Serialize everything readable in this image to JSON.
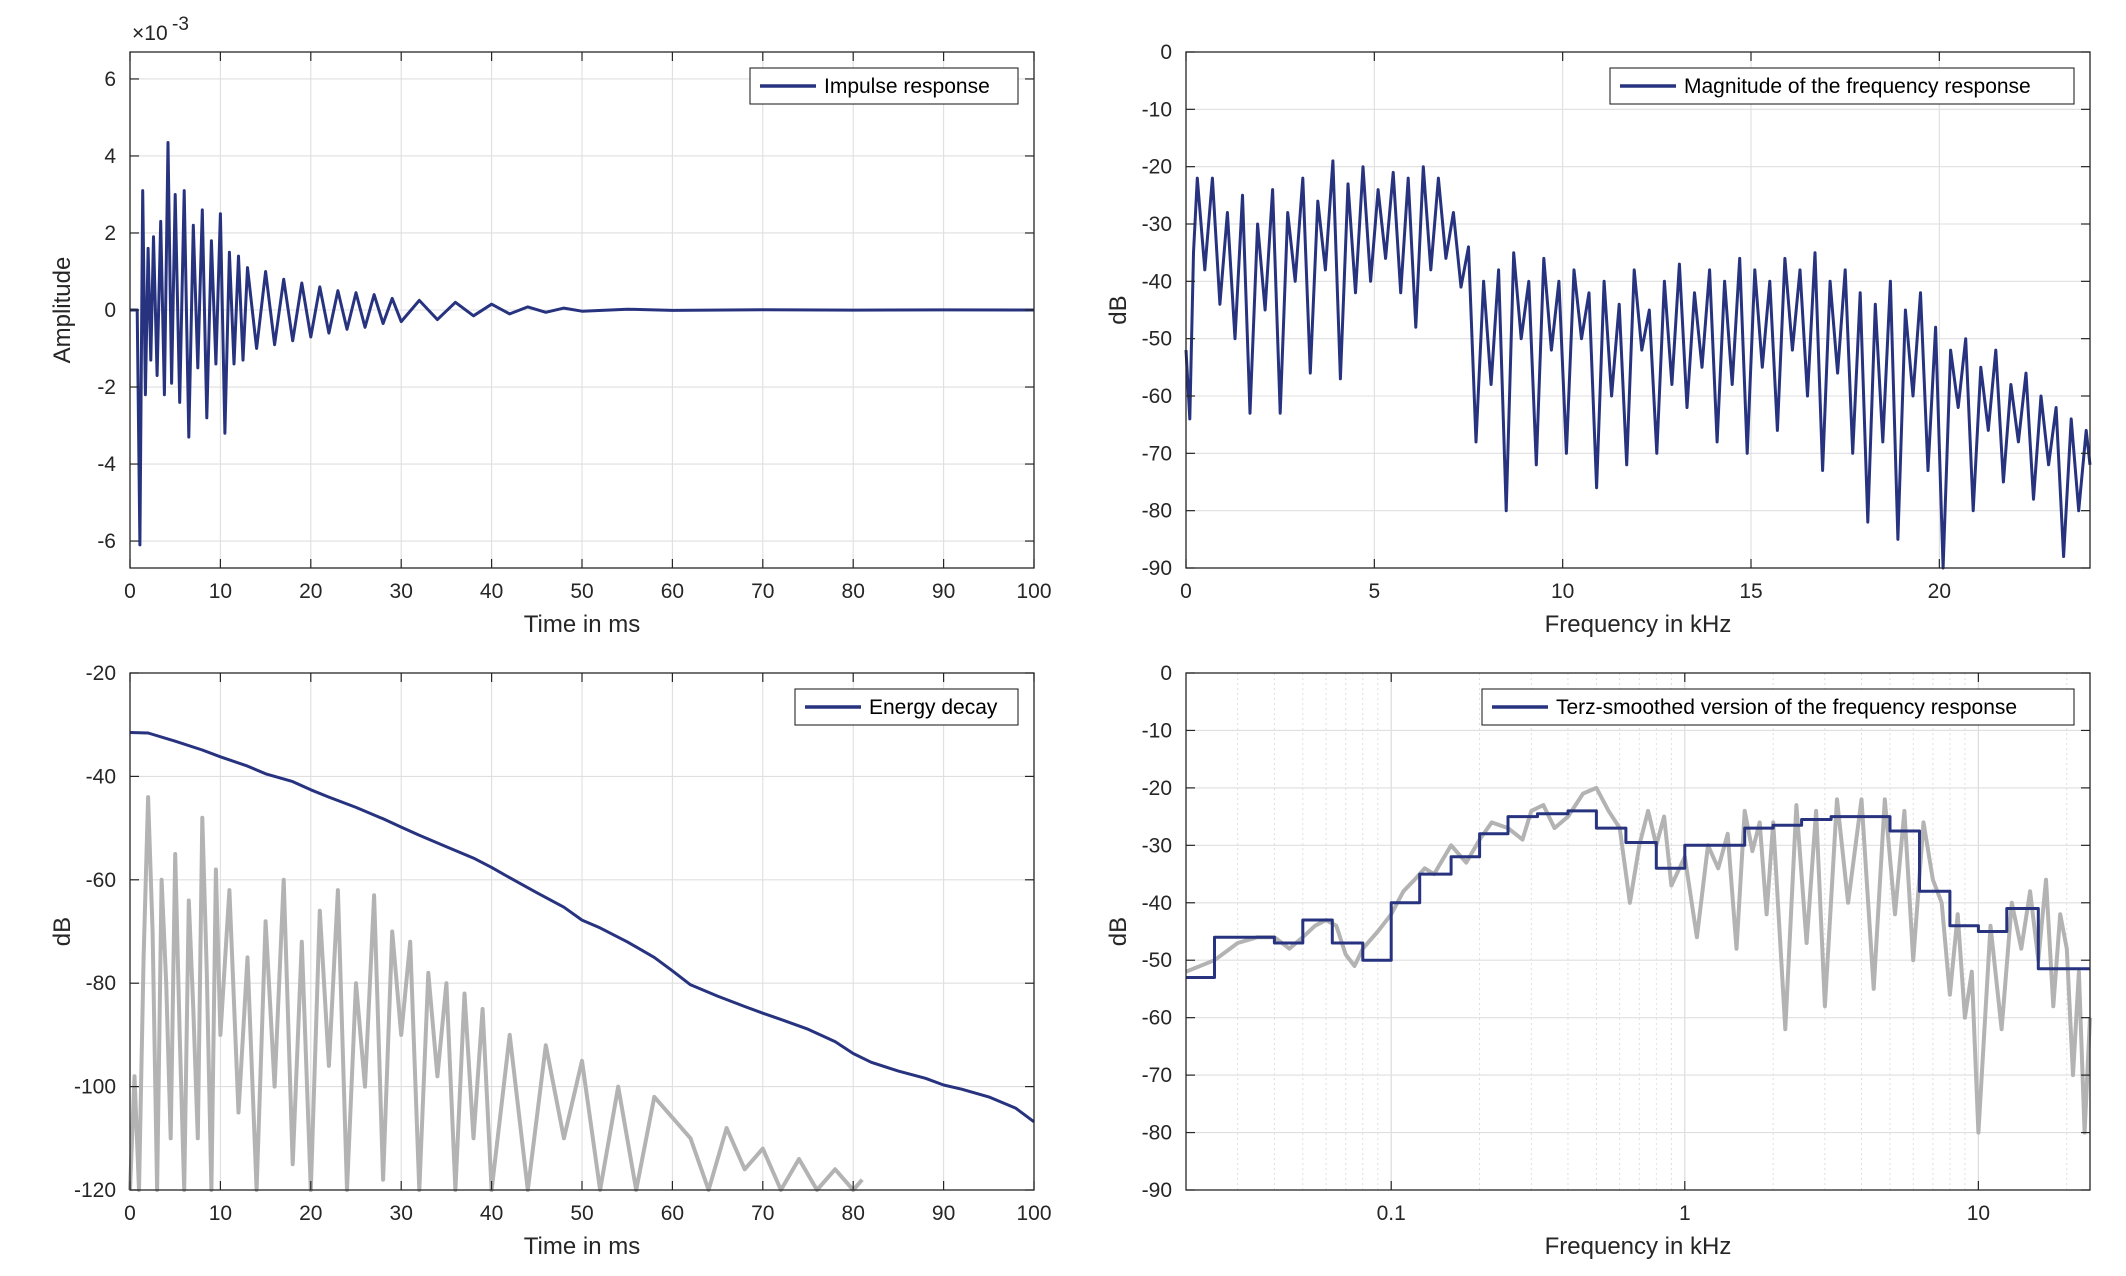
{
  "chart_data": [
    {
      "type": "line",
      "panel": "top-left",
      "xlabel": "Time in ms",
      "ylabel": "Amplitude",
      "xlim": [
        0,
        100
      ],
      "ylim": [
        -6.7,
        6.7
      ],
      "y_scale_note": "×10",
      "y_exponent": "-3",
      "xticks": [
        0,
        10,
        20,
        30,
        40,
        50,
        60,
        70,
        80,
        90,
        100
      ],
      "yticks": [
        -6,
        -4,
        -2,
        0,
        2,
        4,
        6
      ],
      "grid": true,
      "legend_position": "top-right",
      "series": [
        {
          "name": "Impulse response",
          "color": "#27337f",
          "x": [
            0,
            0.8,
            1.1,
            1.4,
            1.7,
            2.0,
            2.3,
            2.6,
            3.0,
            3.4,
            3.8,
            4.2,
            4.6,
            5.0,
            5.5,
            6.0,
            6.5,
            7.0,
            7.5,
            8.0,
            8.5,
            9.0,
            9.5,
            10.0,
            10.5,
            11.0,
            11.5,
            12.0,
            12.5,
            13,
            14,
            15,
            16,
            17,
            18,
            19,
            20,
            21,
            22,
            23,
            24,
            25,
            26,
            27,
            28,
            29,
            30,
            32,
            34,
            36,
            38,
            40,
            42,
            44,
            46,
            48,
            50,
            55,
            60,
            70,
            80,
            90,
            100
          ],
          "y": [
            0,
            0,
            -6.1,
            3.1,
            -2.2,
            1.6,
            -1.3,
            1.9,
            -1.7,
            2.3,
            -2.2,
            4.35,
            -1.9,
            3.0,
            -2.4,
            3.1,
            -3.3,
            2.2,
            -1.5,
            2.6,
            -2.8,
            1.8,
            -1.4,
            2.5,
            -3.2,
            1.5,
            -1.4,
            1.4,
            -1.3,
            1.1,
            -1.0,
            1.0,
            -0.9,
            0.8,
            -0.8,
            0.7,
            -0.7,
            0.6,
            -0.6,
            0.5,
            -0.5,
            0.45,
            -0.45,
            0.4,
            -0.35,
            0.3,
            -0.3,
            0.25,
            -0.25,
            0.2,
            -0.15,
            0.15,
            -0.1,
            0.08,
            -0.06,
            0.05,
            -0.03,
            0.02,
            -0.01,
            0.005,
            -0.003,
            0.002,
            0
          ]
        }
      ]
    },
    {
      "type": "line",
      "panel": "top-right",
      "xlabel": "Frequency in kHz",
      "ylabel": "dB",
      "xlim": [
        0,
        24
      ],
      "ylim": [
        -90,
        0
      ],
      "xticks": [
        0,
        5,
        10,
        15,
        20
      ],
      "yticks": [
        0,
        -10,
        -20,
        -30,
        -40,
        -50,
        -60,
        -70,
        -80,
        -90
      ],
      "grid": true,
      "legend_position": "top-right",
      "series": [
        {
          "name": "Magnitude of the frequency response",
          "color": "#27337f",
          "x": [
            0,
            0.1,
            0.2,
            0.3,
            0.5,
            0.7,
            0.9,
            1.1,
            1.3,
            1.5,
            1.7,
            1.9,
            2.1,
            2.3,
            2.5,
            2.7,
            2.9,
            3.1,
            3.3,
            3.5,
            3.7,
            3.9,
            4.1,
            4.3,
            4.5,
            4.7,
            4.9,
            5.1,
            5.3,
            5.5,
            5.7,
            5.9,
            6.1,
            6.3,
            6.5,
            6.7,
            6.9,
            7.1,
            7.3,
            7.5,
            7.7,
            7.9,
            8.1,
            8.3,
            8.5,
            8.7,
            8.9,
            9.1,
            9.3,
            9.5,
            9.7,
            9.9,
            10.1,
            10.3,
            10.5,
            10.7,
            10.9,
            11.1,
            11.3,
            11.5,
            11.7,
            11.9,
            12.1,
            12.3,
            12.5,
            12.7,
            12.9,
            13.1,
            13.3,
            13.5,
            13.7,
            13.9,
            14.1,
            14.3,
            14.5,
            14.7,
            14.9,
            15.1,
            15.3,
            15.5,
            15.7,
            15.9,
            16.1,
            16.3,
            16.5,
            16.7,
            16.9,
            17.1,
            17.3,
            17.5,
            17.7,
            17.9,
            18.1,
            18.3,
            18.5,
            18.7,
            18.9,
            19.1,
            19.3,
            19.5,
            19.7,
            19.9,
            20.1,
            20.3,
            20.5,
            20.7,
            20.9,
            21.1,
            21.3,
            21.5,
            21.7,
            21.9,
            22.1,
            22.3,
            22.5,
            22.7,
            22.9,
            23.1,
            23.3,
            23.5,
            23.7,
            23.9,
            24
          ],
          "y": [
            -52,
            -64,
            -35,
            -22,
            -38,
            -22,
            -44,
            -28,
            -50,
            -25,
            -63,
            -30,
            -45,
            -24,
            -63,
            -28,
            -40,
            -22,
            -56,
            -26,
            -38,
            -19,
            -57,
            -23,
            -42,
            -20,
            -40,
            -24,
            -36,
            -21,
            -42,
            -22,
            -48,
            -20,
            -38,
            -22,
            -36,
            -28,
            -41,
            -34,
            -68,
            -40,
            -58,
            -38,
            -80,
            -35,
            -50,
            -40,
            -72,
            -36,
            -52,
            -40,
            -70,
            -38,
            -50,
            -42,
            -76,
            -40,
            -60,
            -44,
            -72,
            -38,
            -52,
            -45,
            -70,
            -40,
            -58,
            -37,
            -62,
            -42,
            -55,
            -38,
            -68,
            -40,
            -58,
            -36,
            -70,
            -38,
            -55,
            -40,
            -66,
            -36,
            -52,
            -38,
            -60,
            -35,
            -73,
            -40,
            -56,
            -38,
            -70,
            -42,
            -82,
            -44,
            -68,
            -40,
            -85,
            -45,
            -60,
            -42,
            -73,
            -48,
            -90,
            -52,
            -62,
            -50,
            -80,
            -55,
            -66,
            -52,
            -75,
            -58,
            -68,
            -56,
            -78,
            -60,
            -72,
            -62,
            -88,
            -64,
            -80,
            -66,
            -72
          ]
        }
      ]
    },
    {
      "type": "line",
      "panel": "bottom-left",
      "xlabel": "Time in ms",
      "ylabel": "dB",
      "xlim": [
        0,
        100
      ],
      "ylim": [
        -120,
        -20
      ],
      "xticks": [
        0,
        10,
        20,
        30,
        40,
        50,
        60,
        70,
        80,
        90,
        100
      ],
      "yticks": [
        -20,
        -40,
        -60,
        -80,
        -100,
        -120
      ],
      "grid": true,
      "legend_position": "top-right",
      "series": [
        {
          "name": "Energy decay",
          "color": "#27337f",
          "x": [
            0,
            2,
            5,
            8,
            10,
            13,
            15,
            18,
            20,
            22,
            25,
            28,
            30,
            32,
            35,
            38,
            40,
            42,
            45,
            48,
            50,
            52,
            55,
            58,
            60,
            62,
            65,
            68,
            70,
            72,
            75,
            78,
            80,
            82,
            85,
            88,
            90,
            92,
            95,
            98,
            100
          ],
          "y": [
            -31.5,
            -31.6,
            -33.2,
            -34.9,
            -36.2,
            -38.0,
            -39.5,
            -41.0,
            -42.6,
            -44.0,
            -46.0,
            -48.2,
            -49.8,
            -51.4,
            -53.6,
            -55.8,
            -57.6,
            -59.6,
            -62.5,
            -65.3,
            -67.8,
            -69.3,
            -72.0,
            -75.0,
            -77.6,
            -80.3,
            -82.5,
            -84.5,
            -85.8,
            -87.0,
            -88.9,
            -91.3,
            -93.6,
            -95.3,
            -97.0,
            -98.4,
            -99.7,
            -100.5,
            -102.0,
            -104.2,
            -106.8
          ]
        },
        {
          "name": "",
          "color": "#b3b3b3",
          "x": [
            0,
            0.5,
            1,
            1.5,
            2,
            2.5,
            3,
            3.5,
            4,
            4.5,
            5,
            5.5,
            6,
            6.5,
            7,
            7.5,
            8,
            8.5,
            9,
            9.5,
            10,
            11,
            12,
            13,
            14,
            15,
            16,
            17,
            18,
            19,
            20,
            21,
            22,
            23,
            24,
            25,
            26,
            27,
            28,
            29,
            30,
            31,
            32,
            33,
            34,
            35,
            36,
            37,
            38,
            39,
            40,
            42,
            44,
            46,
            48,
            50,
            52,
            54,
            56,
            58,
            60,
            62,
            64,
            66,
            68,
            70,
            72,
            74,
            76,
            78,
            80,
            81
          ],
          "y": [
            -120,
            -98,
            -120,
            -75,
            -44,
            -70,
            -120,
            -60,
            -80,
            -110,
            -55,
            -90,
            -120,
            -64,
            -85,
            -110,
            -48,
            -78,
            -120,
            -58,
            -90,
            -62,
            -105,
            -75,
            -120,
            -68,
            -100,
            -60,
            -115,
            -72,
            -120,
            -66,
            -96,
            -62,
            -120,
            -80,
            -100,
            -63,
            -118,
            -70,
            -90,
            -72,
            -120,
            -78,
            -98,
            -80,
            -120,
            -82,
            -110,
            -85,
            -120,
            -90,
            -120,
            -92,
            -110,
            -95,
            -120,
            -100,
            -120,
            -102,
            -106,
            -110,
            -120,
            -108,
            -116,
            -112,
            -120,
            -114,
            -120,
            -116,
            -120,
            -118
          ]
        }
      ]
    },
    {
      "type": "line",
      "panel": "bottom-right",
      "xlabel": "Frequency in kHz",
      "ylabel": "dB",
      "x_scale": "log",
      "xlim": [
        0.02,
        24
      ],
      "ylim": [
        -90,
        0
      ],
      "xticks": [
        0.1,
        1,
        10
      ],
      "xticklabels": [
        "0.1",
        "1",
        "10"
      ],
      "yticks": [
        0,
        -10,
        -20,
        -30,
        -40,
        -50,
        -60,
        -70,
        -80,
        -90
      ],
      "grid": true,
      "legend_position": "top-right",
      "series": [
        {
          "name": "Terz-smoothed version of the frequency response",
          "color": "#27337f",
          "x": [
            0.02,
            0.025,
            0.025,
            0.04,
            0.04,
            0.05,
            0.05,
            0.063,
            0.063,
            0.08,
            0.08,
            0.1,
            0.1,
            0.125,
            0.125,
            0.16,
            0.16,
            0.2,
            0.2,
            0.25,
            0.25,
            0.315,
            0.315,
            0.4,
            0.4,
            0.5,
            0.5,
            0.63,
            0.63,
            0.8,
            0.8,
            1.0,
            1.0,
            1.25,
            1.25,
            1.6,
            1.6,
            2.0,
            2.0,
            2.5,
            2.5,
            3.15,
            3.15,
            4.0,
            4.0,
            5.0,
            5.0,
            6.3,
            6.3,
            8.0,
            8.0,
            10.0,
            10.0,
            12.5,
            12.5,
            16.0,
            16.0,
            20.0,
            20.0,
            24
          ],
          "y": [
            -53,
            -53,
            -46,
            -46,
            -47,
            -47,
            -43,
            -43,
            -47,
            -47,
            -50,
            -50,
            -40,
            -40,
            -35,
            -35,
            -32,
            -32,
            -28,
            -28,
            -25,
            -25,
            -24.5,
            -24.5,
            -24,
            -24,
            -27,
            -27,
            -29.5,
            -29.5,
            -34,
            -34,
            -30,
            -30,
            -30,
            -30,
            -27,
            -27,
            -26.5,
            -26.5,
            -25.5,
            -25.5,
            -25,
            -25,
            -25,
            -25,
            -27.5,
            -27.5,
            -38,
            -38,
            -44,
            -44,
            -45,
            -45,
            -41,
            -41,
            -51.5,
            -51.5,
            -51.5,
            -51.5
          ]
        },
        {
          "name": "",
          "color": "#b3b3b3",
          "x": [
            0.02,
            0.025,
            0.03,
            0.035,
            0.04,
            0.045,
            0.05,
            0.055,
            0.06,
            0.065,
            0.07,
            0.075,
            0.08,
            0.09,
            0.1,
            0.11,
            0.12,
            0.13,
            0.14,
            0.16,
            0.18,
            0.2,
            0.22,
            0.25,
            0.28,
            0.3,
            0.33,
            0.36,
            0.4,
            0.45,
            0.5,
            0.55,
            0.6,
            0.65,
            0.7,
            0.75,
            0.8,
            0.85,
            0.9,
            1.0,
            1.1,
            1.2,
            1.3,
            1.4,
            1.5,
            1.6,
            1.7,
            1.8,
            1.9,
            2.0,
            2.2,
            2.4,
            2.6,
            2.8,
            3.0,
            3.3,
            3.6,
            4.0,
            4.4,
            4.8,
            5.2,
            5.6,
            6.0,
            6.5,
            7.0,
            7.5,
            8.0,
            8.5,
            9.0,
            9.5,
            10,
            11,
            12,
            13,
            14,
            15,
            16,
            17,
            18,
            19,
            20,
            21,
            22,
            23,
            24
          ],
          "y": [
            -52,
            -50,
            -47,
            -46,
            -46,
            -48,
            -46,
            -44,
            -43,
            -44,
            -49,
            -51,
            -48,
            -45,
            -42,
            -38,
            -36,
            -34,
            -35,
            -30,
            -33,
            -29,
            -26,
            -27,
            -29,
            -24,
            -23,
            -27,
            -25,
            -21,
            -20,
            -24,
            -27,
            -40,
            -30,
            -24,
            -30,
            -25,
            -37,
            -32,
            -46,
            -30,
            -34,
            -28,
            -48,
            -24,
            -31,
            -26,
            -42,
            -26,
            -62,
            -23,
            -47,
            -24,
            -58,
            -22,
            -40,
            -22,
            -55,
            -22,
            -42,
            -24,
            -50,
            -26,
            -36,
            -40,
            -56,
            -42,
            -60,
            -52,
            -80,
            -44,
            -62,
            -40,
            -48,
            -38,
            -50,
            -36,
            -58,
            -42,
            -48,
            -70,
            -52,
            -80,
            -60
          ]
        }
      ]
    }
  ]
}
